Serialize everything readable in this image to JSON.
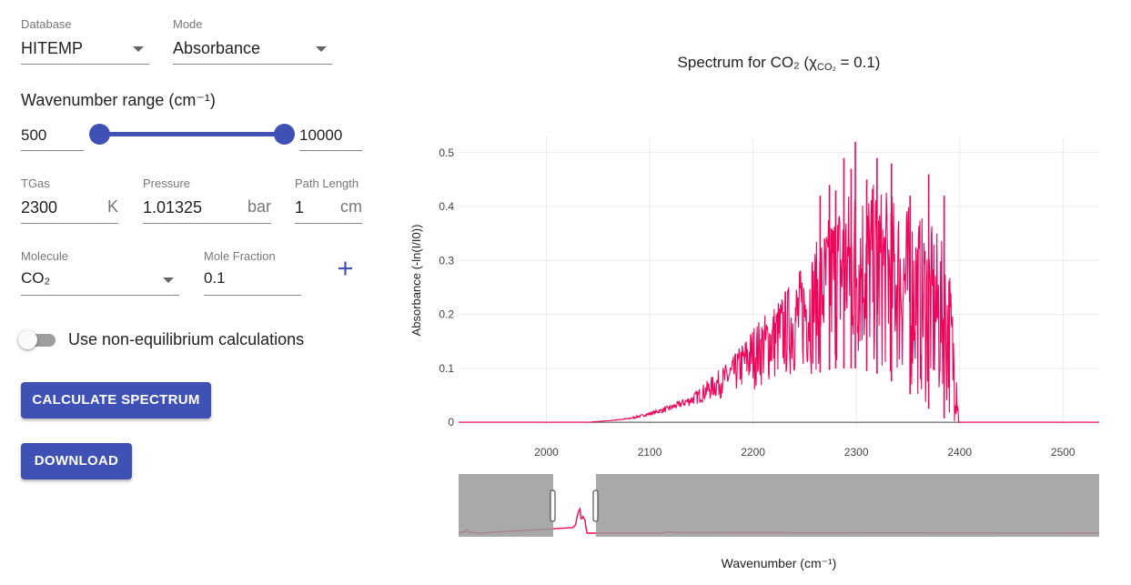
{
  "form": {
    "database": {
      "label": "Database",
      "value": "HITEMP"
    },
    "mode": {
      "label": "Mode",
      "value": "Absorbance"
    },
    "wavenumber": {
      "label": "Wavenumber range (cm⁻¹)",
      "min": "500",
      "max": "10000"
    },
    "tgas": {
      "label": "TGas",
      "value": "2300",
      "unit": "K"
    },
    "pressure": {
      "label": "Pressure",
      "value": "1.01325",
      "unit": "bar"
    },
    "path_length": {
      "label": "Path Length",
      "value": "1",
      "unit": "cm"
    },
    "molecule": {
      "label": "Molecule",
      "value": "CO₂"
    },
    "mole_fraction": {
      "label": "Mole Fraction",
      "value": "0.1"
    },
    "add_icon": "plus-icon",
    "nonequilibrium": {
      "label": "Use non-equilibrium calculations",
      "checked": false
    },
    "calculate_label": "CALCULATE SPECTRUM",
    "download_label": "DOWNLOAD"
  },
  "colors": {
    "accent": "#3f51b5",
    "trace": "#f0055a",
    "overview_bg": "#9a9a9a"
  },
  "chart_data": {
    "type": "line",
    "title": "Spectrum for CO₂ (χCO₂ = 0.1)",
    "title_prefix": "Spectrum for CO₂ (",
    "title_chi": "χ",
    "title_sub": "CO₂",
    "title_suffix": " = 0.1)",
    "xlabel": "Wavenumber (cm⁻¹)",
    "ylabel": "Absorbance (-ln(I/I0))",
    "xlim": [
      1915,
      2535
    ],
    "ylim": [
      -0.01,
      0.53
    ],
    "x_ticks": [
      2000,
      2100,
      2200,
      2300,
      2400,
      2500
    ],
    "y_ticks": [
      0,
      0.1,
      0.2,
      0.3,
      0.4,
      0.5
    ],
    "y_tick_labels": [
      "0",
      "0.1",
      "0.2",
      "0.3",
      "0.4",
      "0.5"
    ],
    "grid": true,
    "series": [
      {
        "envelope_upper": [
          [
            1915,
            0
          ],
          [
            2040,
            0
          ],
          [
            2060,
            0.003
          ],
          [
            2080,
            0.008
          ],
          [
            2100,
            0.018
          ],
          [
            2120,
            0.032
          ],
          [
            2140,
            0.05
          ],
          [
            2160,
            0.085
          ],
          [
            2180,
            0.12
          ],
          [
            2200,
            0.18
          ],
          [
            2220,
            0.22
          ],
          [
            2240,
            0.27
          ],
          [
            2260,
            0.33
          ],
          [
            2280,
            0.41
          ],
          [
            2300,
            0.45
          ],
          [
            2320,
            0.44
          ],
          [
            2340,
            0.42
          ],
          [
            2360,
            0.39
          ],
          [
            2380,
            0.35
          ],
          [
            2390,
            0.3
          ],
          [
            2398,
            0.1
          ],
          [
            2399,
            0
          ],
          [
            2535,
            0
          ]
        ],
        "envelope_lower": [
          [
            1915,
            0
          ],
          [
            2040,
            0
          ],
          [
            2080,
            0.005
          ],
          [
            2120,
            0.02
          ],
          [
            2160,
            0.04
          ],
          [
            2200,
            0.06
          ],
          [
            2240,
            0.08
          ],
          [
            2280,
            0.1
          ],
          [
            2300,
            0.1
          ],
          [
            2320,
            0.09
          ],
          [
            2340,
            0.07
          ],
          [
            2360,
            0.04
          ],
          [
            2380,
            0.01
          ],
          [
            2398,
            0
          ],
          [
            2535,
            0
          ]
        ],
        "peaks": [
          [
            2299,
            0.52
          ],
          [
            2288,
            0.49
          ],
          [
            2320,
            0.49
          ],
          [
            2334,
            0.48
          ],
          [
            2370,
            0.46
          ],
          [
            2274,
            0.44
          ],
          [
            2295,
            0.47
          ],
          [
            2310,
            0.45
          ],
          [
            2280,
            0.43
          ],
          [
            2352,
            0.42
          ],
          [
            2385,
            0.42
          ],
          [
            2265,
            0.42
          ]
        ]
      }
    ],
    "overview": {
      "xlim": [
        500,
        10000
      ],
      "selected_range": [
        1915,
        2535
      ],
      "main_band": [
        [
          500,
          0
        ],
        [
          600,
          0.03
        ],
        [
          620,
          0.06
        ],
        [
          660,
          0.02
        ],
        [
          800,
          0
        ],
        [
          2200,
          0.1
        ],
        [
          2250,
          0.3
        ],
        [
          2290,
          0.5
        ],
        [
          2320,
          0.4
        ],
        [
          2370,
          0.35
        ],
        [
          2400,
          0
        ],
        [
          3500,
          0
        ],
        [
          3600,
          0.02
        ],
        [
          3750,
          0.01
        ],
        [
          10000,
          0
        ]
      ]
    }
  }
}
